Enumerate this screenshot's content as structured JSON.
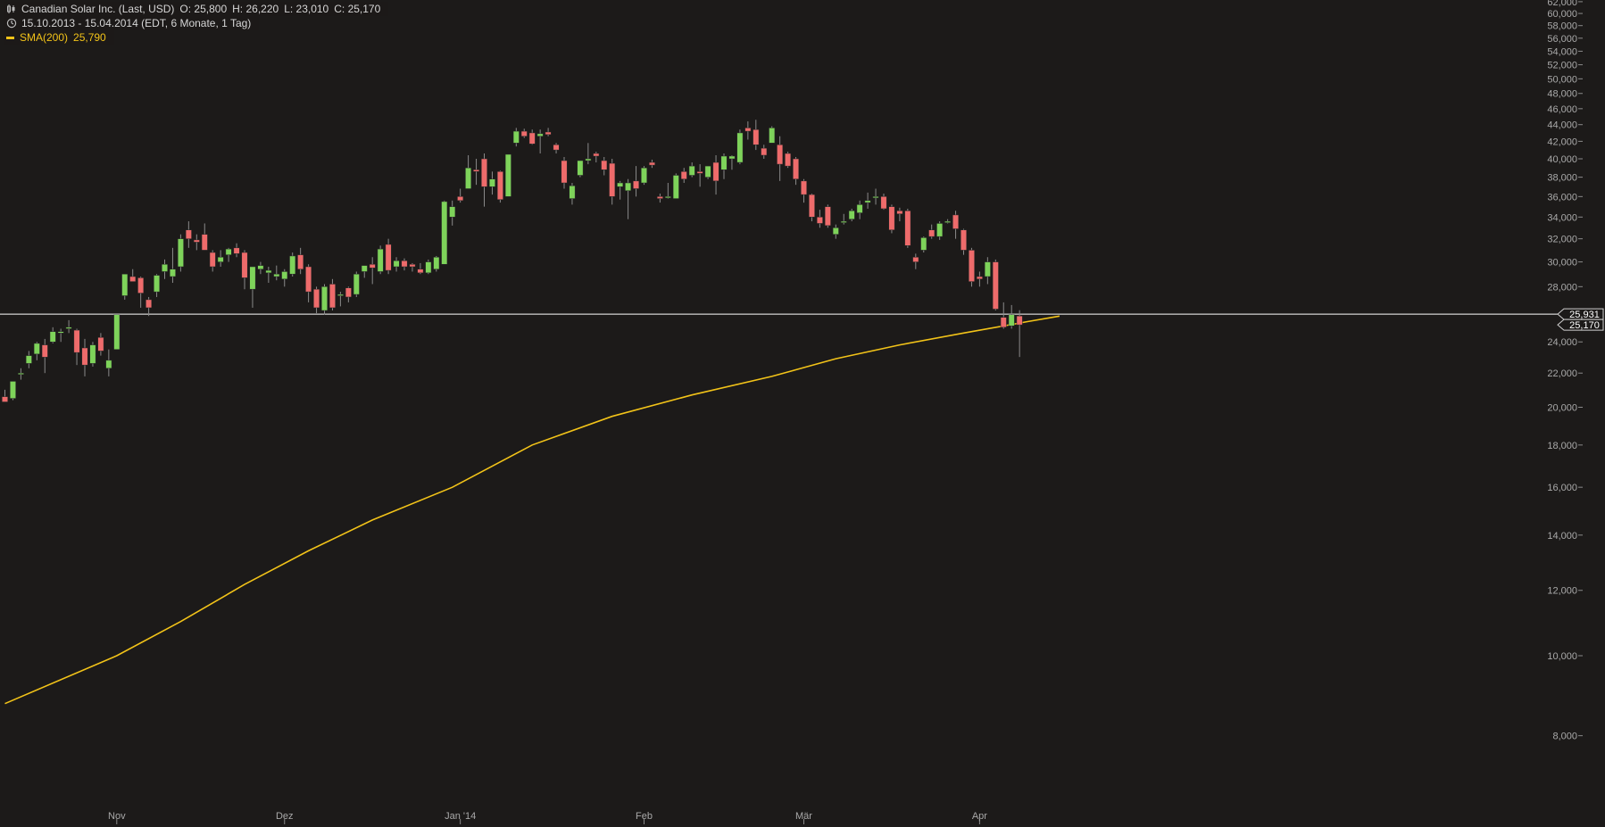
{
  "header": {
    "title": "Canadian Solar Inc. (Last, USD)",
    "open": "O: 25,800",
    "high": "H: 26,220",
    "low": "L: 23,010",
    "close": "C: 25,170",
    "period": "15.10.2013 - 15.04.2014 (EDT, 6 Monate, 1 Tag)",
    "sma_label": "SMA(200)",
    "sma_value": "25,790"
  },
  "colors": {
    "background": "#1c1a19",
    "up": "#7ed35a",
    "down": "#ee6b6b",
    "sma": "#f2c319",
    "text": "#a9a9a9",
    "hline": "#ffffff"
  },
  "chart_data": {
    "type": "candlestick",
    "scale": "log",
    "ylim": [
      7000,
      62000
    ],
    "y_ticks": [
      62000,
      60000,
      58000,
      56000,
      54000,
      52000,
      50000,
      48000,
      46000,
      44000,
      42000,
      40000,
      38000,
      36000,
      34000,
      32000,
      30000,
      28000,
      24000,
      22000,
      20000,
      18000,
      16000,
      14000,
      12000,
      10000,
      8000
    ],
    "y_tick_labels": [
      "62,000",
      "60,000",
      "58,000",
      "56,000",
      "54,000",
      "52,000",
      "50,000",
      "48,000",
      "46,000",
      "44,000",
      "42,000",
      "40,000",
      "38,000",
      "36,000",
      "34,000",
      "32,000",
      "30,000",
      "28,000",
      "24,000",
      "22,000",
      "20,000",
      "18,000",
      "16,000",
      "14,000",
      "12,000",
      "10,000",
      "8,000"
    ],
    "x_ticks": [
      {
        "label": "Nov",
        "index": 14
      },
      {
        "label": "Dez",
        "index": 35
      },
      {
        "label": "Jan '14",
        "index": 57
      },
      {
        "label": "Feb",
        "index": 80
      },
      {
        "label": "Mär",
        "index": 100
      },
      {
        "label": "Apr",
        "index": 122
      }
    ],
    "last_value_labels": [
      {
        "value": 25931,
        "label": "25,931"
      },
      {
        "value": 25170,
        "label": "25,170"
      }
    ],
    "candles": [
      {
        "o": 20.6,
        "h": 21.0,
        "l": 20.3,
        "c": 20.3
      },
      {
        "o": 20.5,
        "h": 21.5,
        "l": 20.4,
        "c": 21.5
      },
      {
        "o": 22.0,
        "h": 22.3,
        "l": 21.6,
        "c": 22.0
      },
      {
        "o": 22.6,
        "h": 23.4,
        "l": 22.3,
        "c": 23.1
      },
      {
        "o": 23.2,
        "h": 24.0,
        "l": 22.8,
        "c": 23.9
      },
      {
        "o": 23.8,
        "h": 24.2,
        "l": 22.0,
        "c": 23.0
      },
      {
        "o": 24.0,
        "h": 25.0,
        "l": 23.9,
        "c": 24.7
      },
      {
        "o": 24.6,
        "h": 24.9,
        "l": 24.0,
        "c": 24.7
      },
      {
        "o": 24.9,
        "h": 25.5,
        "l": 24.6,
        "c": 25.0
      },
      {
        "o": 24.8,
        "h": 24.9,
        "l": 22.5,
        "c": 23.3
      },
      {
        "o": 23.6,
        "h": 24.2,
        "l": 21.8,
        "c": 22.5
      },
      {
        "o": 22.6,
        "h": 24.0,
        "l": 22.4,
        "c": 23.8
      },
      {
        "o": 24.3,
        "h": 24.6,
        "l": 23.1,
        "c": 23.4
      },
      {
        "o": 22.3,
        "h": 23.5,
        "l": 21.8,
        "c": 22.8
      },
      {
        "o": 23.5,
        "h": 25.9,
        "l": 23.5,
        "c": 25.9
      },
      {
        "o": 27.3,
        "h": 29.0,
        "l": 27.0,
        "c": 29.0
      },
      {
        "o": 28.8,
        "h": 29.4,
        "l": 28.5,
        "c": 28.4
      },
      {
        "o": 28.7,
        "h": 28.8,
        "l": 26.4,
        "c": 27.5
      },
      {
        "o": 27.0,
        "h": 27.2,
        "l": 25.8,
        "c": 26.4
      },
      {
        "o": 27.6,
        "h": 29.0,
        "l": 27.2,
        "c": 28.9
      },
      {
        "o": 29.2,
        "h": 30.2,
        "l": 28.6,
        "c": 29.8
      },
      {
        "o": 28.8,
        "h": 31.2,
        "l": 28.3,
        "c": 29.4
      },
      {
        "o": 29.6,
        "h": 32.4,
        "l": 29.2,
        "c": 32.0
      },
      {
        "o": 32.8,
        "h": 33.6,
        "l": 31.2,
        "c": 32.0
      },
      {
        "o": 31.9,
        "h": 32.4,
        "l": 31.0,
        "c": 31.7
      },
      {
        "o": 32.4,
        "h": 33.4,
        "l": 31.0,
        "c": 31.0
      },
      {
        "o": 30.8,
        "h": 31.0,
        "l": 29.2,
        "c": 29.6
      },
      {
        "o": 30.0,
        "h": 31.0,
        "l": 29.6,
        "c": 30.4
      },
      {
        "o": 30.6,
        "h": 31.2,
        "l": 30.0,
        "c": 31.1
      },
      {
        "o": 31.2,
        "h": 31.6,
        "l": 30.4,
        "c": 30.7
      },
      {
        "o": 30.8,
        "h": 31.0,
        "l": 27.8,
        "c": 28.7
      },
      {
        "o": 27.8,
        "h": 29.6,
        "l": 26.4,
        "c": 29.6
      },
      {
        "o": 29.4,
        "h": 30.0,
        "l": 29.0,
        "c": 29.7
      },
      {
        "o": 29.1,
        "h": 29.6,
        "l": 28.3,
        "c": 29.3
      },
      {
        "o": 28.8,
        "h": 29.7,
        "l": 28.5,
        "c": 29.0
      },
      {
        "o": 28.6,
        "h": 29.4,
        "l": 28.0,
        "c": 29.2
      },
      {
        "o": 29.0,
        "h": 30.8,
        "l": 28.8,
        "c": 30.5
      },
      {
        "o": 30.6,
        "h": 31.2,
        "l": 29.0,
        "c": 29.4
      },
      {
        "o": 29.6,
        "h": 29.8,
        "l": 26.8,
        "c": 27.6
      },
      {
        "o": 27.8,
        "h": 28.0,
        "l": 26.0,
        "c": 26.4
      },
      {
        "o": 26.2,
        "h": 28.2,
        "l": 25.9,
        "c": 28.0
      },
      {
        "o": 28.2,
        "h": 28.6,
        "l": 26.2,
        "c": 26.4
      },
      {
        "o": 27.3,
        "h": 27.6,
        "l": 26.5,
        "c": 27.4
      },
      {
        "o": 27.9,
        "h": 28.0,
        "l": 26.8,
        "c": 27.2
      },
      {
        "o": 27.4,
        "h": 29.2,
        "l": 27.2,
        "c": 29.0
      },
      {
        "o": 29.2,
        "h": 29.6,
        "l": 28.7,
        "c": 29.7
      },
      {
        "o": 29.8,
        "h": 30.4,
        "l": 28.2,
        "c": 29.5
      },
      {
        "o": 29.2,
        "h": 31.4,
        "l": 29.0,
        "c": 31.1
      },
      {
        "o": 31.5,
        "h": 32.0,
        "l": 29.0,
        "c": 29.3
      },
      {
        "o": 29.6,
        "h": 30.4,
        "l": 29.2,
        "c": 30.1
      },
      {
        "o": 30.1,
        "h": 30.3,
        "l": 29.3,
        "c": 29.6
      },
      {
        "o": 29.8,
        "h": 29.9,
        "l": 29.2,
        "c": 29.6
      },
      {
        "o": 29.4,
        "h": 29.9,
        "l": 29.0,
        "c": 29.1
      },
      {
        "o": 29.1,
        "h": 30.2,
        "l": 29.0,
        "c": 30.0
      },
      {
        "o": 29.4,
        "h": 30.5,
        "l": 29.2,
        "c": 30.4
      },
      {
        "o": 29.8,
        "h": 35.6,
        "l": 29.8,
        "c": 35.5
      },
      {
        "o": 34.0,
        "h": 35.6,
        "l": 33.2,
        "c": 35.0
      },
      {
        "o": 36.0,
        "h": 36.8,
        "l": 35.4,
        "c": 35.6
      },
      {
        "o": 36.8,
        "h": 40.4,
        "l": 36.8,
        "c": 39.0
      },
      {
        "o": 38.8,
        "h": 40.0,
        "l": 37.2,
        "c": 38.6
      },
      {
        "o": 40.0,
        "h": 40.6,
        "l": 35.0,
        "c": 37.0
      },
      {
        "o": 37.0,
        "h": 38.6,
        "l": 36.2,
        "c": 37.8
      },
      {
        "o": 38.6,
        "h": 38.7,
        "l": 35.4,
        "c": 35.7
      },
      {
        "o": 36.0,
        "h": 40.5,
        "l": 36.0,
        "c": 40.5
      },
      {
        "o": 41.8,
        "h": 43.6,
        "l": 41.4,
        "c": 43.2
      },
      {
        "o": 43.2,
        "h": 43.5,
        "l": 42.4,
        "c": 42.6
      },
      {
        "o": 43.0,
        "h": 43.4,
        "l": 41.6,
        "c": 41.7
      },
      {
        "o": 42.6,
        "h": 43.4,
        "l": 40.6,
        "c": 42.9
      },
      {
        "o": 43.1,
        "h": 43.6,
        "l": 42.6,
        "c": 42.8
      },
      {
        "o": 41.6,
        "h": 41.8,
        "l": 40.6,
        "c": 41.0
      },
      {
        "o": 39.8,
        "h": 40.2,
        "l": 36.8,
        "c": 37.4
      },
      {
        "o": 35.8,
        "h": 37.4,
        "l": 35.2,
        "c": 37.1
      },
      {
        "o": 38.2,
        "h": 39.8,
        "l": 38.0,
        "c": 39.8
      },
      {
        "o": 39.8,
        "h": 41.8,
        "l": 39.4,
        "c": 40.0
      },
      {
        "o": 40.6,
        "h": 40.8,
        "l": 39.6,
        "c": 40.3
      },
      {
        "o": 39.8,
        "h": 40.2,
        "l": 38.2,
        "c": 38.8
      },
      {
        "o": 39.5,
        "h": 40.0,
        "l": 35.2,
        "c": 36.0
      },
      {
        "o": 37.0,
        "h": 37.6,
        "l": 35.7,
        "c": 37.4
      },
      {
        "o": 36.6,
        "h": 37.8,
        "l": 33.8,
        "c": 37.4
      },
      {
        "o": 37.6,
        "h": 39.2,
        "l": 36.0,
        "c": 36.8
      },
      {
        "o": 37.4,
        "h": 39.2,
        "l": 37.2,
        "c": 39.0
      },
      {
        "o": 39.6,
        "h": 39.9,
        "l": 39.0,
        "c": 39.3
      },
      {
        "o": 36.0,
        "h": 36.3,
        "l": 35.4,
        "c": 35.8
      },
      {
        "o": 36.0,
        "h": 37.4,
        "l": 35.8,
        "c": 36.0
      },
      {
        "o": 35.8,
        "h": 38.4,
        "l": 35.8,
        "c": 38.2
      },
      {
        "o": 38.6,
        "h": 39.0,
        "l": 37.4,
        "c": 37.8
      },
      {
        "o": 38.2,
        "h": 39.6,
        "l": 38.0,
        "c": 39.2
      },
      {
        "o": 38.6,
        "h": 39.4,
        "l": 37.0,
        "c": 38.4
      },
      {
        "o": 38.0,
        "h": 39.2,
        "l": 37.8,
        "c": 39.2
      },
      {
        "o": 39.6,
        "h": 40.4,
        "l": 36.2,
        "c": 37.6
      },
      {
        "o": 38.8,
        "h": 40.6,
        "l": 37.8,
        "c": 40.3
      },
      {
        "o": 40.0,
        "h": 40.4,
        "l": 38.8,
        "c": 40.3
      },
      {
        "o": 39.6,
        "h": 43.4,
        "l": 39.4,
        "c": 43.0
      },
      {
        "o": 43.6,
        "h": 44.4,
        "l": 42.2,
        "c": 43.2
      },
      {
        "o": 43.4,
        "h": 44.6,
        "l": 41.0,
        "c": 41.6
      },
      {
        "o": 41.2,
        "h": 41.6,
        "l": 40.0,
        "c": 40.4
      },
      {
        "o": 41.8,
        "h": 43.8,
        "l": 41.8,
        "c": 43.6
      },
      {
        "o": 41.6,
        "h": 42.6,
        "l": 37.6,
        "c": 39.4
      },
      {
        "o": 40.6,
        "h": 40.8,
        "l": 39.0,
        "c": 39.2
      },
      {
        "o": 40.0,
        "h": 40.2,
        "l": 37.2,
        "c": 37.8
      },
      {
        "o": 37.6,
        "h": 37.8,
        "l": 35.4,
        "c": 36.2
      },
      {
        "o": 36.2,
        "h": 36.3,
        "l": 33.6,
        "c": 34.0
      },
      {
        "o": 34.0,
        "h": 34.7,
        "l": 33.0,
        "c": 33.4
      },
      {
        "o": 35.0,
        "h": 35.2,
        "l": 33.0,
        "c": 33.2
      },
      {
        "o": 32.4,
        "h": 33.3,
        "l": 32.0,
        "c": 33.0
      },
      {
        "o": 33.5,
        "h": 34.3,
        "l": 33.3,
        "c": 33.6
      },
      {
        "o": 33.8,
        "h": 34.8,
        "l": 33.6,
        "c": 34.6
      },
      {
        "o": 34.4,
        "h": 35.6,
        "l": 33.8,
        "c": 35.2
      },
      {
        "o": 35.4,
        "h": 36.4,
        "l": 34.8,
        "c": 35.6
      },
      {
        "o": 35.9,
        "h": 36.8,
        "l": 35.2,
        "c": 36.0
      },
      {
        "o": 36.0,
        "h": 36.3,
        "l": 34.7,
        "c": 34.8
      },
      {
        "o": 35.0,
        "h": 35.2,
        "l": 32.5,
        "c": 32.8
      },
      {
        "o": 34.6,
        "h": 34.9,
        "l": 33.6,
        "c": 34.3
      },
      {
        "o": 34.6,
        "h": 34.8,
        "l": 31.2,
        "c": 31.4
      },
      {
        "o": 30.4,
        "h": 30.7,
        "l": 29.4,
        "c": 30.0
      },
      {
        "o": 31.0,
        "h": 32.2,
        "l": 30.8,
        "c": 32.1
      },
      {
        "o": 32.8,
        "h": 33.3,
        "l": 32.0,
        "c": 32.2
      },
      {
        "o": 32.2,
        "h": 33.6,
        "l": 31.9,
        "c": 33.4
      },
      {
        "o": 33.6,
        "h": 33.8,
        "l": 33.4,
        "c": 33.6
      },
      {
        "o": 34.2,
        "h": 34.6,
        "l": 32.0,
        "c": 32.9
      },
      {
        "o": 32.8,
        "h": 32.9,
        "l": 30.6,
        "c": 31.0
      },
      {
        "o": 31.0,
        "h": 31.2,
        "l": 28.0,
        "c": 28.4
      },
      {
        "o": 28.8,
        "h": 29.2,
        "l": 28.0,
        "c": 28.6
      },
      {
        "o": 28.8,
        "h": 30.4,
        "l": 28.2,
        "c": 30.0
      },
      {
        "o": 30.0,
        "h": 30.2,
        "l": 26.2,
        "c": 26.3
      },
      {
        "o": 25.7,
        "h": 26.8,
        "l": 24.9,
        "c": 25.0
      },
      {
        "o": 25.1,
        "h": 26.6,
        "l": 24.9,
        "c": 25.9
      },
      {
        "o": 25.8,
        "h": 26.22,
        "l": 23.01,
        "c": 25.17
      }
    ],
    "sma": {
      "name": "SMA(200)",
      "points": [
        [
          0,
          8.75
        ],
        [
          14,
          10.0
        ],
        [
          22,
          11.0
        ],
        [
          30,
          12.2
        ],
        [
          38,
          13.4
        ],
        [
          46,
          14.6
        ],
        [
          56,
          16.0
        ],
        [
          66,
          18.0
        ],
        [
          76,
          19.5
        ],
        [
          86,
          20.7
        ],
        [
          96,
          21.8
        ],
        [
          104,
          22.9
        ],
        [
          112,
          23.8
        ],
        [
          120,
          24.6
        ],
        [
          128,
          25.4
        ],
        [
          132,
          25.79
        ]
      ]
    }
  }
}
